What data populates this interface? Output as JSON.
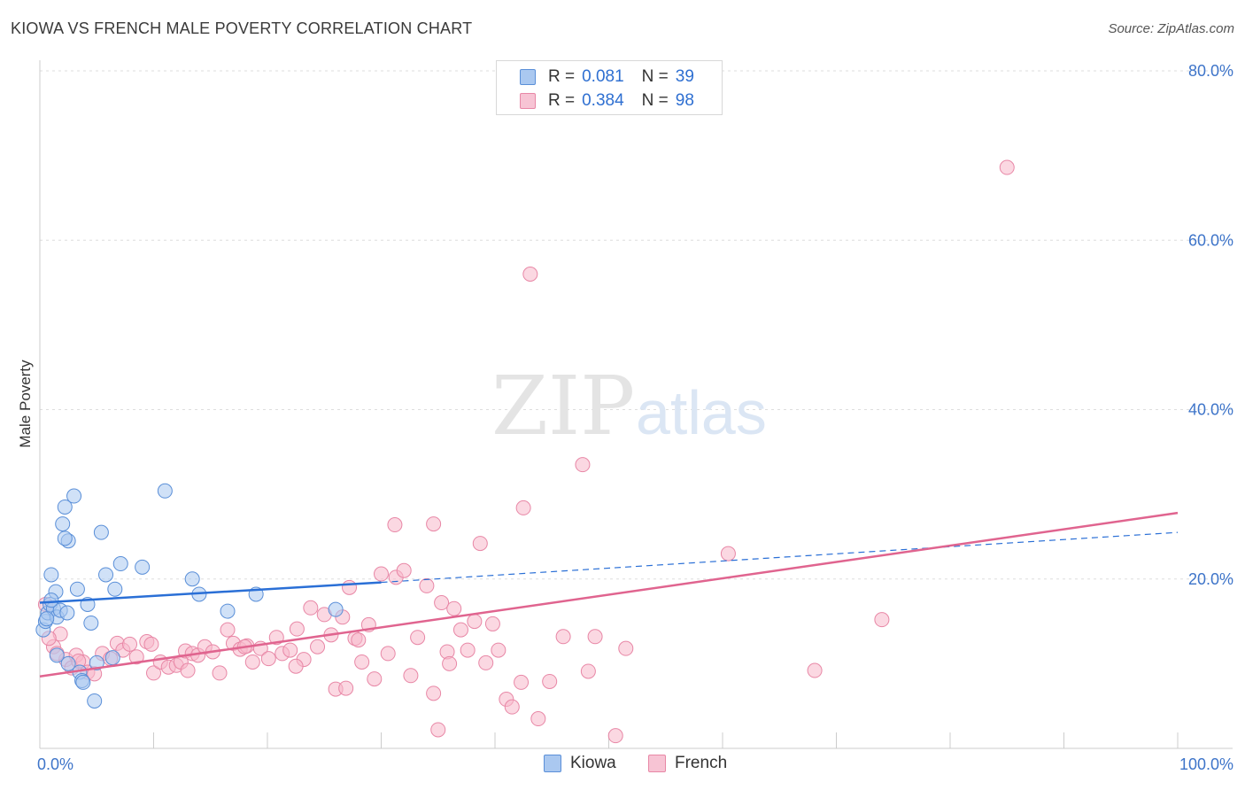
{
  "header": {
    "title": "KIOWA VS FRENCH MALE POVERTY CORRELATION CHART",
    "source": "Source: ZipAtlas.com"
  },
  "stats_legend": {
    "r_label": "R =",
    "n_label": "N =",
    "rows": [
      {
        "series": "Kiowa",
        "r": "0.081",
        "n": "39"
      },
      {
        "series": "French",
        "r": "0.384",
        "n": "98"
      }
    ]
  },
  "watermark": {
    "zip": "ZIP",
    "atlas": "atlas"
  },
  "colors": {
    "kiowa_fill": "#aac8f0",
    "kiowa_stroke": "#5a8fd8",
    "kiowa_line": "#2a6fd6",
    "french_fill": "#f7b8cb",
    "french_stroke": "#e887a6",
    "french_line": "#e0648f",
    "tick_label": "#3d74c9",
    "grid": "#dddddd"
  },
  "chart_data": {
    "type": "scatter",
    "title": "KIOWA VS FRENCH MALE POVERTY CORRELATION CHART",
    "xlabel": "",
    "ylabel": "Male Poverty",
    "xlim": [
      0,
      100
    ],
    "ylim": [
      0,
      80
    ],
    "x_tick_labels": [
      "0.0%",
      "100.0%"
    ],
    "y_ticks": [
      20,
      40,
      60,
      80
    ],
    "y_tick_labels": [
      "20.0%",
      "40.0%",
      "60.0%",
      "80.0%"
    ],
    "legend": [
      "Kiowa",
      "French"
    ],
    "series": [
      {
        "name": "Kiowa",
        "r": 0.081,
        "n": 39,
        "trend": {
          "x0": 0,
          "y0": 17.2,
          "x1": 30,
          "y1": 19.6,
          "dashed_to_x": 100,
          "dashed_to_y": 25.5
        },
        "points": [
          [
            0.3,
            14.0
          ],
          [
            0.5,
            15.0
          ],
          [
            0.7,
            16.0
          ],
          [
            0.9,
            17.0
          ],
          [
            1.2,
            16.5
          ],
          [
            1.5,
            15.5
          ],
          [
            1.0,
            20.5
          ],
          [
            1.4,
            18.5
          ],
          [
            1.8,
            16.3
          ],
          [
            2.0,
            26.5
          ],
          [
            2.2,
            28.5
          ],
          [
            2.5,
            24.5
          ],
          [
            2.4,
            16.0
          ],
          [
            2.2,
            24.8
          ],
          [
            3.0,
            29.8
          ],
          [
            3.3,
            18.8
          ],
          [
            4.2,
            17.0
          ],
          [
            4.5,
            14.8
          ],
          [
            5.4,
            25.5
          ],
          [
            5.8,
            20.5
          ],
          [
            6.6,
            18.8
          ],
          [
            7.1,
            21.8
          ],
          [
            9.0,
            21.4
          ],
          [
            11.0,
            30.4
          ],
          [
            13.4,
            20.0
          ],
          [
            14.0,
            18.2
          ],
          [
            16.5,
            16.2
          ],
          [
            19.0,
            18.2
          ],
          [
            26.0,
            16.4
          ],
          [
            1.5,
            11.0
          ],
          [
            2.5,
            10.0
          ],
          [
            3.5,
            9.0
          ],
          [
            3.7,
            8.0
          ],
          [
            4.8,
            5.6
          ],
          [
            5.0,
            10.1
          ],
          [
            6.4,
            10.7
          ],
          [
            1.0,
            17.5
          ],
          [
            3.8,
            7.8
          ],
          [
            0.6,
            15.3
          ]
        ]
      },
      {
        "name": "French",
        "r": 0.384,
        "n": 98,
        "trend": {
          "x0": 0,
          "y0": 8.5,
          "x1": 100,
          "y1": 27.8
        },
        "points": [
          [
            0.5,
            17.0
          ],
          [
            1.2,
            12.0
          ],
          [
            1.8,
            13.5
          ],
          [
            2.3,
            10.5
          ],
          [
            2.8,
            9.5
          ],
          [
            3.2,
            11.0
          ],
          [
            3.8,
            10.2
          ],
          [
            4.2,
            9.0
          ],
          [
            4.8,
            8.8
          ],
          [
            5.5,
            11.2
          ],
          [
            6.2,
            10.6
          ],
          [
            6.8,
            12.4
          ],
          [
            7.3,
            11.6
          ],
          [
            7.9,
            12.3
          ],
          [
            8.5,
            10.8
          ],
          [
            9.4,
            12.6
          ],
          [
            10.0,
            8.9
          ],
          [
            10.6,
            10.2
          ],
          [
            11.3,
            9.6
          ],
          [
            12.0,
            9.8
          ],
          [
            12.4,
            10.2
          ],
          [
            12.8,
            11.5
          ],
          [
            13.4,
            11.2
          ],
          [
            13.9,
            11.0
          ],
          [
            14.5,
            12.0
          ],
          [
            15.2,
            11.4
          ],
          [
            15.8,
            8.9
          ],
          [
            16.5,
            14.0
          ],
          [
            17.0,
            12.4
          ],
          [
            17.6,
            11.7
          ],
          [
            18.2,
            12.1
          ],
          [
            18.7,
            10.2
          ],
          [
            19.4,
            11.8
          ],
          [
            20.1,
            10.6
          ],
          [
            20.8,
            13.1
          ],
          [
            21.3,
            11.2
          ],
          [
            22.0,
            11.6
          ],
          [
            22.6,
            14.1
          ],
          [
            23.2,
            10.5
          ],
          [
            23.8,
            16.6
          ],
          [
            24.4,
            12.0
          ],
          [
            25.0,
            15.8
          ],
          [
            25.6,
            13.4
          ],
          [
            26.0,
            7.0
          ],
          [
            26.6,
            15.5
          ],
          [
            27.2,
            19.0
          ],
          [
            27.7,
            13.0
          ],
          [
            28.3,
            10.2
          ],
          [
            28.9,
            14.6
          ],
          [
            29.4,
            8.2
          ],
          [
            30.0,
            20.6
          ],
          [
            30.6,
            11.2
          ],
          [
            31.3,
            20.2
          ],
          [
            32.0,
            21.0
          ],
          [
            32.6,
            8.6
          ],
          [
            33.2,
            13.1
          ],
          [
            34.0,
            19.2
          ],
          [
            34.6,
            6.5
          ],
          [
            35.3,
            17.2
          ],
          [
            35.8,
            11.4
          ],
          [
            36.4,
            16.5
          ],
          [
            37.0,
            14.0
          ],
          [
            37.6,
            11.6
          ],
          [
            38.2,
            15.0
          ],
          [
            38.7,
            24.2
          ],
          [
            39.2,
            10.1
          ],
          [
            39.8,
            14.7
          ],
          [
            40.3,
            11.6
          ],
          [
            41.0,
            5.8
          ],
          [
            41.5,
            4.9
          ],
          [
            42.3,
            7.8
          ],
          [
            43.8,
            3.5
          ],
          [
            44.8,
            7.9
          ],
          [
            46.0,
            13.2
          ],
          [
            47.7,
            33.5
          ],
          [
            48.2,
            9.1
          ],
          [
            48.8,
            13.2
          ],
          [
            50.6,
            1.5
          ],
          [
            51.5,
            11.8
          ],
          [
            60.5,
            23.0
          ],
          [
            68.1,
            9.2
          ],
          [
            74.0,
            15.2
          ],
          [
            85.0,
            68.6
          ],
          [
            26.9,
            7.1
          ],
          [
            31.2,
            26.4
          ],
          [
            34.6,
            26.5
          ],
          [
            42.5,
            28.4
          ],
          [
            43.1,
            56.0
          ],
          [
            35.0,
            2.2
          ],
          [
            22.5,
            9.7
          ],
          [
            13.0,
            9.2
          ],
          [
            9.8,
            12.3
          ],
          [
            3.4,
            10.3
          ],
          [
            0.8,
            13.0
          ],
          [
            1.5,
            11.2
          ],
          [
            18.0,
            12.0
          ],
          [
            28.0,
            12.8
          ],
          [
            36.0,
            10.0
          ]
        ]
      }
    ]
  }
}
